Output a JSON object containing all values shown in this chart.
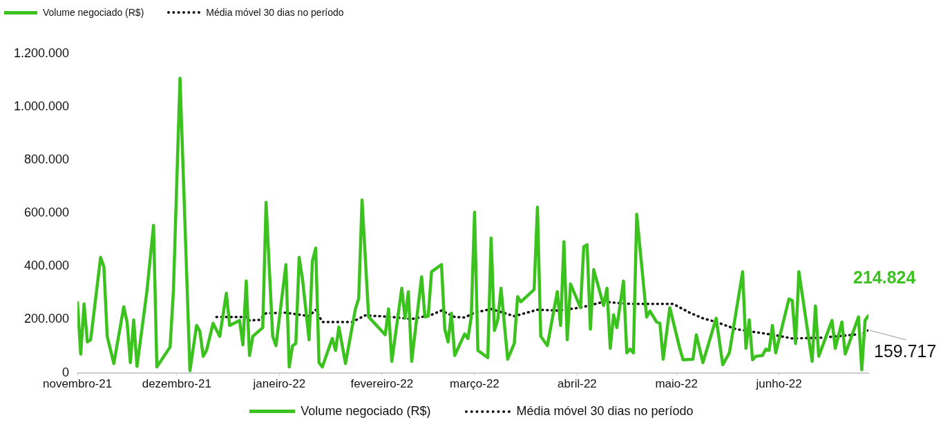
{
  "chart_data": {
    "type": "line",
    "xlim": [
      "2021-11-01",
      "2022-06-28"
    ],
    "xticks": [
      {
        "value": "2021-11-01",
        "label": "novembro-21"
      },
      {
        "value": "2021-12-01",
        "label": "dezembro-21"
      },
      {
        "value": "2022-01-01",
        "label": "janeiro-22"
      },
      {
        "value": "2022-02-01",
        "label": "fevereiro-22"
      },
      {
        "value": "2022-03-01",
        "label": "março-22"
      },
      {
        "value": "2022-04-01",
        "label": "abril-22"
      },
      {
        "value": "2022-05-01",
        "label": "maio-22"
      },
      {
        "value": "2022-06-01",
        "label": "junho-22"
      }
    ],
    "ylim": [
      0,
      1200000
    ],
    "yticks": [
      {
        "value": 0,
        "label": "0"
      },
      {
        "value": 200000,
        "label": "200.000"
      },
      {
        "value": 400000,
        "label": "400.000"
      },
      {
        "value": 600000,
        "label": "600.000"
      },
      {
        "value": 800000,
        "label": "800.000"
      },
      {
        "value": 1000000,
        "label": "1.000.000"
      },
      {
        "value": 1200000,
        "label": "1.200.000"
      }
    ],
    "grid": false,
    "legend": "bottom",
    "marker": "none",
    "series": [
      {
        "name": "Volume negociado (R$)",
        "color": "#3cc21e",
        "line_style": "solid",
        "x": [
          "2021-11-01",
          "2021-11-02",
          "2021-11-03",
          "2021-11-04",
          "2021-11-05",
          "2021-11-08",
          "2021-11-09",
          "2021-11-10",
          "2021-11-12",
          "2021-11-15",
          "2021-11-16",
          "2021-11-17",
          "2021-11-18",
          "2021-11-19",
          "2021-11-22",
          "2021-11-24",
          "2021-11-25",
          "2021-11-29",
          "2021-11-30",
          "2021-12-02",
          "2021-12-05",
          "2021-12-07",
          "2021-12-08",
          "2021-12-09",
          "2021-12-10",
          "2021-12-12",
          "2021-12-14",
          "2021-12-16",
          "2021-12-17",
          "2021-12-20",
          "2021-12-21",
          "2021-12-22",
          "2021-12-23",
          "2021-12-24",
          "2021-12-27",
          "2021-12-28",
          "2021-12-30",
          "2021-12-31",
          "2022-01-03",
          "2022-01-04",
          "2022-01-05",
          "2022-01-06",
          "2022-01-07",
          "2022-01-08",
          "2022-01-10",
          "2022-01-11",
          "2022-01-12",
          "2022-01-13",
          "2022-01-14",
          "2022-01-17",
          "2022-01-18",
          "2022-01-19",
          "2022-01-21",
          "2022-01-24",
          "2022-01-25",
          "2022-01-26",
          "2022-01-28",
          "2022-02-02",
          "2022-02-03",
          "2022-02-04",
          "2022-02-07",
          "2022-02-08",
          "2022-02-09",
          "2022-02-10",
          "2022-02-13",
          "2022-02-14",
          "2022-02-15",
          "2022-02-16",
          "2022-02-19",
          "2022-02-20",
          "2022-02-21",
          "2022-02-22",
          "2022-02-23",
          "2022-02-26",
          "2022-02-27",
          "2022-02-28",
          "2022-03-01",
          "2022-03-02",
          "2022-03-05",
          "2022-03-06",
          "2022-03-07",
          "2022-03-08",
          "2022-03-09",
          "2022-03-11",
          "2022-03-13",
          "2022-03-14",
          "2022-03-15",
          "2022-03-19",
          "2022-03-20",
          "2022-03-21",
          "2022-03-23",
          "2022-03-26",
          "2022-03-27",
          "2022-03-28",
          "2022-03-29",
          "2022-03-30",
          "2022-04-02",
          "2022-04-03",
          "2022-04-04",
          "2022-04-05",
          "2022-04-06",
          "2022-04-09",
          "2022-04-10",
          "2022-04-11",
          "2022-04-12",
          "2022-04-13",
          "2022-04-15",
          "2022-04-16",
          "2022-04-17",
          "2022-04-18",
          "2022-04-19",
          "2022-04-22",
          "2022-04-23",
          "2022-04-25",
          "2022-04-26",
          "2022-04-27",
          "2022-04-29",
          "2022-05-02",
          "2022-05-03",
          "2022-05-06",
          "2022-05-07",
          "2022-05-09",
          "2022-05-13",
          "2022-05-15",
          "2022-05-17",
          "2022-05-21",
          "2022-05-22",
          "2022-05-23",
          "2022-05-24",
          "2022-05-25",
          "2022-05-27",
          "2022-05-28",
          "2022-05-29",
          "2022-05-30",
          "2022-05-31",
          "2022-06-04",
          "2022-06-05",
          "2022-06-06",
          "2022-06-07",
          "2022-06-11",
          "2022-06-12",
          "2022-06-13",
          "2022-06-17",
          "2022-06-18",
          "2022-06-20",
          "2022-06-21",
          "2022-06-25",
          "2022-06-26",
          "2022-06-27",
          "2022-06-28"
        ],
        "values": [
          264000,
          70000,
          259000,
          116000,
          124000,
          434000,
          399000,
          137000,
          35000,
          248000,
          191000,
          38000,
          199000,
          24000,
          307000,
          555000,
          22000,
          97000,
          307000,
          1108000,
          8000,
          178000,
          156000,
          62000,
          84000,
          186000,
          137000,
          299000,
          178000,
          197000,
          105000,
          345000,
          65000,
          137000,
          170000,
          641000,
          137000,
          102000,
          407000,
          22000,
          102000,
          110000,
          434000,
          353000,
          124000,
          420000,
          469000,
          38000,
          22000,
          129000,
          84000,
          172000,
          35000,
          240000,
          280000,
          650000,
          210000,
          143000,
          240000,
          43000,
          318000,
          205000,
          305000,
          43000,
          361000,
          210000,
          213000,
          380000,
          407000,
          164000,
          116000,
          224000,
          65000,
          146000,
          129000,
          210000,
          604000,
          84000,
          57000,
          507000,
          159000,
          199000,
          318000,
          51000,
          110000,
          286000,
          267000,
          313000,
          623000,
          137000,
          102000,
          305000,
          178000,
          493000,
          124000,
          334000,
          245000,
          474000,
          482000,
          164000,
          388000,
          253000,
          318000,
          92000,
          218000,
          170000,
          345000,
          75000,
          89000,
          75000,
          596000,
          210000,
          232000,
          191000,
          186000,
          51000,
          245000,
          92000,
          49000,
          51000,
          143000,
          38000,
          205000,
          30000,
          75000,
          380000,
          92000,
          199000,
          49000,
          62000,
          65000,
          89000,
          84000,
          178000,
          75000,
          278000,
          272000,
          110000,
          380000,
          43000,
          251000,
          62000,
          197000,
          92000,
          191000,
          70000,
          210000,
          11000,
          197000,
          214824
        ]
      },
      {
        "name": "Média móvel 30 dias no período",
        "color": "#111111",
        "line_style": "dotted",
        "x": [
          "2021-12-13",
          "2021-12-22",
          "2021-12-23",
          "2021-12-26",
          "2021-12-28",
          "2022-01-03",
          "2022-01-10",
          "2022-01-12",
          "2022-01-14",
          "2022-01-23",
          "2022-01-27",
          "2022-02-04",
          "2022-02-10",
          "2022-02-16",
          "2022-02-19",
          "2022-02-23",
          "2022-02-26",
          "2022-03-01",
          "2022-03-06",
          "2022-03-13",
          "2022-03-20",
          "2022-03-26",
          "2022-04-02",
          "2022-04-09",
          "2022-04-17",
          "2022-04-30",
          "2022-05-05",
          "2022-05-09",
          "2022-05-13",
          "2022-05-19",
          "2022-05-30",
          "2022-06-05",
          "2022-06-14",
          "2022-06-26",
          "2022-06-28"
        ],
        "values": [
          210000,
          210000,
          197000,
          199000,
          224000,
          226000,
          213000,
          237000,
          191000,
          191000,
          216000,
          210000,
          202000,
          218000,
          234000,
          210000,
          208000,
          226000,
          240000,
          213000,
          237000,
          234000,
          245000,
          267000,
          259000,
          259000,
          226000,
          205000,
          191000,
          164000,
          143000,
          129000,
          132000,
          146000,
          159717
        ]
      }
    ],
    "annotations": [
      {
        "text": "214.824",
        "x": "2022-06-28",
        "y": 214824
      },
      {
        "text": "159.717",
        "x": "2022-06-28",
        "y": 159717
      }
    ]
  }
}
